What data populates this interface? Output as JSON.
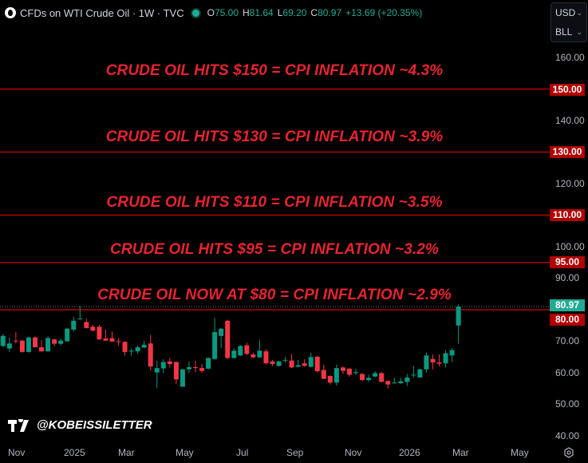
{
  "header": {
    "symbol": "CFDs on WTI Crude Oil · 1W · TVC",
    "open_label": "O",
    "open": "75.00",
    "high_label": "H",
    "high": "81.64",
    "low_label": "L",
    "low": "69.20",
    "close_label": "C",
    "close": "80.97",
    "change": "+13.69 (+20.35%)"
  },
  "currency": {
    "unit": "USD",
    "measure": "BLL"
  },
  "headlines": [
    "CRUDE OIL HITS $150 = CPI INFLATION ~4.3%",
    "CRUDE OIL HITS $130 = CPI INFLATION ~3.9%",
    "CRUDE OIL HITS $110 = CPI INFLATION ~3.5%",
    "CRUDE OIL HITS $95 = CPI INFLATION ~3.2%",
    "CRUDE OIL NOW AT $80 = CPI INFLATION ~2.9%"
  ],
  "price_axis": [
    "160.00",
    "140.00",
    "120.00",
    "100.00",
    "90.00",
    "70.00",
    "60.00",
    "50.00",
    "40.00"
  ],
  "level_badges": [
    "150.00",
    "130.00",
    "110.00",
    "95.00",
    "80.00"
  ],
  "last_price_badge": "80.97",
  "time_axis": [
    "Nov",
    "2025",
    "Mar",
    "May",
    "Jul",
    "Sep",
    "Nov",
    "2026",
    "Mar",
    "May"
  ],
  "watermark": "@KOBEISSILETTER",
  "colors": {
    "up": "#089981",
    "down": "#f23645",
    "level_line": "#b20000",
    "headline": "#e82330"
  },
  "chart_data": {
    "type": "candlestick",
    "interval": "1W",
    "ylim": [
      40,
      160
    ],
    "levels": [
      150,
      130,
      110,
      95,
      80
    ],
    "last_price": 80.97,
    "ohlc": [
      [
        68.5,
        72.3,
        68.1,
        71.7
      ],
      [
        67.7,
        71.2,
        66.6,
        69.3
      ],
      [
        70.2,
        72.9,
        69.3,
        70.0
      ],
      [
        70.2,
        70.5,
        66.4,
        66.6
      ],
      [
        66.6,
        71.5,
        66.4,
        71.2
      ],
      [
        71.2,
        71.5,
        68.0,
        68.1
      ],
      [
        68.1,
        70.4,
        66.7,
        66.8
      ],
      [
        66.8,
        71.5,
        66.7,
        71.0
      ],
      [
        70.6,
        70.8,
        68.5,
        69.2
      ],
      [
        69.2,
        70.9,
        68.7,
        70.2
      ],
      [
        70.0,
        74.2,
        69.8,
        74.0
      ],
      [
        73.7,
        77.8,
        73.1,
        76.5
      ],
      [
        77.0,
        81.2,
        76.9,
        77.2
      ],
      [
        76.1,
        77.1,
        74.0,
        74.2
      ],
      [
        74.6,
        75.2,
        73.1,
        73.4
      ],
      [
        74.6,
        75.2,
        70.5,
        70.6
      ],
      [
        70.9,
        73.7,
        70.1,
        70.2
      ],
      [
        71.0,
        73.1,
        69.8,
        69.9
      ],
      [
        70.0,
        71.0,
        68.5,
        69.8
      ],
      [
        69.8,
        70.0,
        65.5,
        66.6
      ],
      [
        66.8,
        67.8,
        65.4,
        67.0
      ],
      [
        66.8,
        68.7,
        66.0,
        68.1
      ],
      [
        68.0,
        70.2,
        67.9,
        68.9
      ],
      [
        69.3,
        72.0,
        60.7,
        62.0
      ],
      [
        60.1,
        63.9,
        55.2,
        61.5
      ],
      [
        61.4,
        64.3,
        59.9,
        63.4
      ],
      [
        63.6,
        64.7,
        61.7,
        62.8
      ],
      [
        63.4,
        63.6,
        56.4,
        57.9
      ],
      [
        55.6,
        61.3,
        55.5,
        61.1
      ],
      [
        61.1,
        63.6,
        60.0,
        61.8
      ],
      [
        61.8,
        63.8,
        60.2,
        61.5
      ],
      [
        61.5,
        62.8,
        59.9,
        60.6
      ],
      [
        61.3,
        64.9,
        61.1,
        64.7
      ],
      [
        64.4,
        77.4,
        64.1,
        72.9
      ],
      [
        71.7,
        74.2,
        67.8,
        74.0
      ],
      [
        76.5,
        76.8,
        64.3,
        64.7
      ],
      [
        64.7,
        67.7,
        64.5,
        67.0
      ],
      [
        65.5,
        68.9,
        65.3,
        68.5
      ],
      [
        68.7,
        69.5,
        65.5,
        66.0
      ],
      [
        65.8,
        66.4,
        64.7,
        64.9
      ],
      [
        64.9,
        70.4,
        64.7,
        67.0
      ],
      [
        66.8,
        67.5,
        62.7,
        63.0
      ],
      [
        63.6,
        64.1,
        62.1,
        62.8
      ],
      [
        62.2,
        63.8,
        62.0,
        63.6
      ],
      [
        63.9,
        65.1,
        63.2,
        64.1
      ],
      [
        63.9,
        66.0,
        61.5,
        61.7
      ],
      [
        61.9,
        64.1,
        61.7,
        62.4
      ],
      [
        63.0,
        64.3,
        61.9,
        62.2
      ],
      [
        61.9,
        66.4,
        61.7,
        65.0
      ],
      [
        65.1,
        65.3,
        60.1,
        60.5
      ],
      [
        60.9,
        62.6,
        58.0,
        58.1
      ],
      [
        59.0,
        59.2,
        56.3,
        56.9
      ],
      [
        56.9,
        62.6,
        56.0,
        61.5
      ],
      [
        61.7,
        61.9,
        59.6,
        60.6
      ],
      [
        61.3,
        61.5,
        58.8,
        59.4
      ],
      [
        59.9,
        61.3,
        59.3,
        60.2
      ],
      [
        59.6,
        60.0,
        57.4,
        57.7
      ],
      [
        57.7,
        59.4,
        57.1,
        58.4
      ],
      [
        58.8,
        60.5,
        58.6,
        59.9
      ],
      [
        59.9,
        60.3,
        57.0,
        57.1
      ],
      [
        57.4,
        57.6,
        55.0,
        56.3
      ],
      [
        56.7,
        58.5,
        56.5,
        56.9
      ],
      [
        56.7,
        58.4,
        56.5,
        57.3
      ],
      [
        57.1,
        59.6,
        55.8,
        58.5
      ],
      [
        59.2,
        62.2,
        58.5,
        59.4
      ],
      [
        58.5,
        61.3,
        58.4,
        61.1
      ],
      [
        61.1,
        66.4,
        60.1,
        65.5
      ],
      [
        64.4,
        65.8,
        61.1,
        63.3
      ],
      [
        63.3,
        65.8,
        62.0,
        62.9
      ],
      [
        63.0,
        67.2,
        61.7,
        66.2
      ],
      [
        65.5,
        67.8,
        63.4,
        67.2
      ],
      [
        75.0,
        81.64,
        69.2,
        80.97
      ]
    ]
  }
}
